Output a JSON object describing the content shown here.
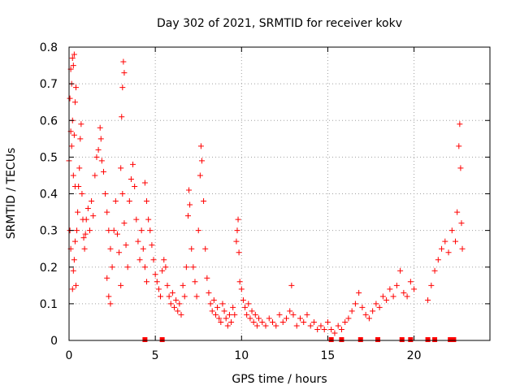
{
  "chart_data": {
    "type": "scatter",
    "title": "Day 302 of 2021, SRMTID for receiver kokv",
    "xlabel": "GPS time / hours",
    "ylabel": "SRMTID / TECUs",
    "xlim": [
      0,
      24.4
    ],
    "ylim": [
      0,
      0.8
    ],
    "x_ticks": [
      0,
      5,
      10,
      15,
      20
    ],
    "x_tick_labels": [
      "0",
      "5",
      "10",
      "15",
      "20"
    ],
    "y_ticks": [
      0,
      0.1,
      0.2,
      0.3,
      0.4,
      0.5,
      0.6,
      0.7,
      0.8
    ],
    "y_tick_labels": [
      "0",
      "0.1",
      "0.2",
      "0.3",
      "0.4",
      "0.5",
      "0.6",
      "0.7",
      "0.8"
    ],
    "grid": true,
    "marker": "plus",
    "series_color": "#ff0000",
    "gap_markers_x": [
      4.4,
      5.4,
      15.2,
      15.8,
      16.9,
      17.9,
      19.3,
      19.8,
      20.8,
      21.2,
      22.1,
      22.3
    ],
    "series": [
      {
        "name": "SRMTID",
        "points": [
          [
            0.0,
            0.49
          ],
          [
            0.05,
            0.66
          ],
          [
            0.1,
            0.74
          ],
          [
            0.15,
            0.7
          ],
          [
            0.2,
            0.77
          ],
          [
            0.25,
            0.75
          ],
          [
            0.3,
            0.78
          ],
          [
            0.35,
            0.65
          ],
          [
            0.4,
            0.69
          ],
          [
            0.1,
            0.57
          ],
          [
            0.15,
            0.53
          ],
          [
            0.2,
            0.6
          ],
          [
            0.3,
            0.56
          ],
          [
            0.25,
            0.45
          ],
          [
            0.35,
            0.42
          ],
          [
            0.05,
            0.3
          ],
          [
            0.1,
            0.25
          ],
          [
            0.2,
            0.14
          ],
          [
            0.25,
            0.19
          ],
          [
            0.3,
            0.22
          ],
          [
            0.35,
            0.27
          ],
          [
            0.4,
            0.15
          ],
          [
            0.45,
            0.3
          ],
          [
            0.5,
            0.35
          ],
          [
            0.55,
            0.42
          ],
          [
            0.6,
            0.47
          ],
          [
            0.65,
            0.55
          ],
          [
            0.7,
            0.59
          ],
          [
            0.75,
            0.4
          ],
          [
            0.8,
            0.33
          ],
          [
            0.85,
            0.28
          ],
          [
            0.9,
            0.25
          ],
          [
            0.95,
            0.29
          ],
          [
            1.0,
            0.33
          ],
          [
            1.1,
            0.36
          ],
          [
            1.2,
            0.3
          ],
          [
            1.3,
            0.38
          ],
          [
            1.4,
            0.34
          ],
          [
            1.5,
            0.45
          ],
          [
            1.6,
            0.5
          ],
          [
            1.7,
            0.52
          ],
          [
            1.8,
            0.58
          ],
          [
            1.85,
            0.55
          ],
          [
            1.9,
            0.49
          ],
          [
            2.0,
            0.46
          ],
          [
            2.1,
            0.4
          ],
          [
            2.2,
            0.35
          ],
          [
            2.3,
            0.3
          ],
          [
            2.4,
            0.25
          ],
          [
            2.2,
            0.17
          ],
          [
            2.3,
            0.12
          ],
          [
            2.4,
            0.1
          ],
          [
            2.5,
            0.2
          ],
          [
            2.6,
            0.3
          ],
          [
            2.7,
            0.38
          ],
          [
            2.8,
            0.29
          ],
          [
            2.9,
            0.24
          ],
          [
            3.0,
            0.15
          ],
          [
            3.05,
            0.61
          ],
          [
            3.1,
            0.69
          ],
          [
            3.15,
            0.76
          ],
          [
            3.2,
            0.73
          ],
          [
            3.0,
            0.47
          ],
          [
            3.1,
            0.4
          ],
          [
            3.2,
            0.32
          ],
          [
            3.3,
            0.26
          ],
          [
            3.4,
            0.2
          ],
          [
            3.5,
            0.38
          ],
          [
            3.6,
            0.44
          ],
          [
            3.7,
            0.48
          ],
          [
            3.8,
            0.42
          ],
          [
            3.9,
            0.33
          ],
          [
            4.0,
            0.27
          ],
          [
            4.1,
            0.22
          ],
          [
            4.2,
            0.3
          ],
          [
            4.3,
            0.25
          ],
          [
            4.4,
            0.2
          ],
          [
            4.5,
            0.16
          ],
          [
            4.4,
            0.43
          ],
          [
            4.5,
            0.38
          ],
          [
            4.6,
            0.33
          ],
          [
            4.7,
            0.3
          ],
          [
            4.8,
            0.26
          ],
          [
            4.9,
            0.22
          ],
          [
            5.0,
            0.18
          ],
          [
            5.1,
            0.16
          ],
          [
            5.2,
            0.14
          ],
          [
            5.3,
            0.12
          ],
          [
            5.4,
            0.19
          ],
          [
            5.5,
            0.22
          ],
          [
            5.6,
            0.2
          ],
          [
            5.7,
            0.15
          ],
          [
            5.8,
            0.12
          ],
          [
            5.9,
            0.1
          ],
          [
            6.0,
            0.13
          ],
          [
            6.1,
            0.09
          ],
          [
            6.2,
            0.11
          ],
          [
            6.3,
            0.08
          ],
          [
            6.4,
            0.1
          ],
          [
            6.5,
            0.07
          ],
          [
            6.6,
            0.15
          ],
          [
            6.7,
            0.12
          ],
          [
            6.8,
            0.2
          ],
          [
            6.9,
            0.34
          ],
          [
            6.95,
            0.41
          ],
          [
            7.0,
            0.37
          ],
          [
            7.1,
            0.25
          ],
          [
            7.2,
            0.2
          ],
          [
            7.3,
            0.16
          ],
          [
            7.4,
            0.12
          ],
          [
            7.5,
            0.3
          ],
          [
            7.6,
            0.45
          ],
          [
            7.65,
            0.53
          ],
          [
            7.7,
            0.49
          ],
          [
            7.8,
            0.38
          ],
          [
            7.9,
            0.25
          ],
          [
            8.0,
            0.17
          ],
          [
            8.1,
            0.13
          ],
          [
            8.2,
            0.1
          ],
          [
            8.3,
            0.08
          ],
          [
            8.4,
            0.11
          ],
          [
            8.5,
            0.07
          ],
          [
            8.6,
            0.09
          ],
          [
            8.7,
            0.06
          ],
          [
            8.8,
            0.05
          ],
          [
            8.9,
            0.1
          ],
          [
            9.0,
            0.08
          ],
          [
            9.1,
            0.06
          ],
          [
            9.2,
            0.04
          ],
          [
            9.3,
            0.07
          ],
          [
            9.4,
            0.05
          ],
          [
            9.5,
            0.09
          ],
          [
            9.6,
            0.07
          ],
          [
            9.7,
            0.27
          ],
          [
            9.75,
            0.3
          ],
          [
            9.8,
            0.33
          ],
          [
            9.85,
            0.24
          ],
          [
            9.9,
            0.16
          ],
          [
            10.0,
            0.14
          ],
          [
            10.1,
            0.11
          ],
          [
            10.2,
            0.09
          ],
          [
            10.3,
            0.07
          ],
          [
            10.4,
            0.1
          ],
          [
            10.5,
            0.06
          ],
          [
            10.6,
            0.08
          ],
          [
            10.7,
            0.05
          ],
          [
            10.8,
            0.07
          ],
          [
            10.9,
            0.04
          ],
          [
            11.0,
            0.06
          ],
          [
            11.2,
            0.05
          ],
          [
            11.4,
            0.04
          ],
          [
            11.6,
            0.06
          ],
          [
            11.8,
            0.05
          ],
          [
            12.0,
            0.04
          ],
          [
            12.2,
            0.07
          ],
          [
            12.4,
            0.05
          ],
          [
            12.6,
            0.06
          ],
          [
            12.8,
            0.08
          ],
          [
            12.9,
            0.15
          ],
          [
            13.0,
            0.07
          ],
          [
            13.2,
            0.04
          ],
          [
            13.4,
            0.06
          ],
          [
            13.6,
            0.05
          ],
          [
            13.8,
            0.07
          ],
          [
            14.0,
            0.04
          ],
          [
            14.2,
            0.05
          ],
          [
            14.4,
            0.03
          ],
          [
            14.6,
            0.04
          ],
          [
            14.8,
            0.03
          ],
          [
            15.0,
            0.05
          ],
          [
            15.2,
            0.03
          ],
          [
            15.4,
            0.02
          ],
          [
            15.6,
            0.04
          ],
          [
            15.8,
            0.03
          ],
          [
            16.0,
            0.05
          ],
          [
            16.2,
            0.06
          ],
          [
            16.4,
            0.08
          ],
          [
            16.6,
            0.1
          ],
          [
            16.8,
            0.13
          ],
          [
            17.0,
            0.09
          ],
          [
            17.2,
            0.07
          ],
          [
            17.4,
            0.06
          ],
          [
            17.6,
            0.08
          ],
          [
            17.8,
            0.1
          ],
          [
            18.0,
            0.09
          ],
          [
            18.2,
            0.12
          ],
          [
            18.4,
            0.11
          ],
          [
            18.6,
            0.14
          ],
          [
            18.8,
            0.12
          ],
          [
            19.0,
            0.15
          ],
          [
            19.2,
            0.19
          ],
          [
            19.4,
            0.13
          ],
          [
            19.6,
            0.12
          ],
          [
            19.8,
            0.16
          ],
          [
            20.0,
            0.14
          ],
          [
            20.8,
            0.11
          ],
          [
            21.0,
            0.15
          ],
          [
            21.2,
            0.19
          ],
          [
            21.4,
            0.22
          ],
          [
            21.6,
            0.25
          ],
          [
            21.8,
            0.27
          ],
          [
            22.0,
            0.24
          ],
          [
            22.2,
            0.3
          ],
          [
            22.4,
            0.27
          ],
          [
            22.5,
            0.35
          ],
          [
            22.6,
            0.53
          ],
          [
            22.65,
            0.59
          ],
          [
            22.7,
            0.47
          ],
          [
            22.75,
            0.32
          ],
          [
            22.8,
            0.25
          ]
        ]
      }
    ]
  }
}
